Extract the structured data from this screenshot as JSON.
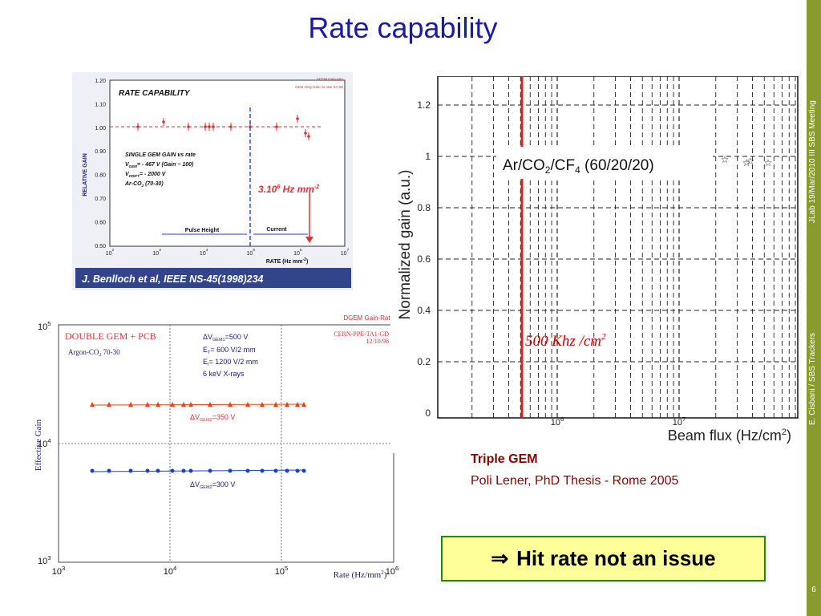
{
  "slide": {
    "title": "Rate capability",
    "side_top": "JLab 19/Mar/2010 III SBS Meeting",
    "side_bottom": "E. Cisbani / SBS Trackers",
    "page_number": "6",
    "conclusion_arrow": "⇒",
    "conclusion_text": "Hit rate not an issue",
    "caption_title": "Triple GEM",
    "caption_ref": "Poli Lener, PhD Thesis - Rome 2005"
  },
  "panel_a": {
    "title": "RATE CAPABILITY",
    "legend1": "SGEM Gain-rate",
    "legend2": "GEM Only Gain vs rate XA-90",
    "note_lines": [
      "SINGLE GEM GAIN vs rate",
      "V",
      "= - 467 V  (Gain ~ 100)",
      "V",
      "= - 2000 V",
      "Ar-CO",
      " (70-30)"
    ],
    "note_sub_gem": "GEM",
    "note_sub_drift": "DRIFT",
    "note_sub_2": "2",
    "rate_label": "3.10",
    "rate_sup": "6",
    "rate_unit": " Hz mm",
    "rate_unit_sup": "-2",
    "pulse_height": "Pulse Height",
    "current": "Current",
    "ylabel": "RELATIVE GAIN",
    "xlabel": "RATE (Hz mm",
    "xlabel_sup": "-2",
    "xlabel_end": ")",
    "citation": "J. Benlloch et al, IEEE NS-45(1998)234",
    "yticks": [
      "1.20",
      "1.10",
      "1.00",
      "0.90",
      "0.80",
      "0.70",
      "0.60",
      "0.50"
    ],
    "xtick_base": "10",
    "xtick_exps": [
      "2",
      "3",
      "4",
      "5",
      "6",
      "7"
    ]
  },
  "panel_b": {
    "header": "DGEM Gain-Rate",
    "title": "DOUBLE GEM + PCB",
    "gas": "Argon-CO",
    "gas_sub": "2",
    "gas_end": " 70-30",
    "lab": "CERN-PPE-TA1-GD",
    "date": "12/10/98",
    "cond1": "ΔV",
    "cond1_sub": "GEM1",
    "cond1_end": "=500 V",
    "cond2": "E",
    "cond2_sub": "T",
    "cond2_end": "= 600 V/2 mm",
    "cond3": "E",
    "cond3_sub": "I",
    "cond3_end": "= 1200 V/2 mm",
    "cond4": "6 keV X-rays",
    "upper_label": "ΔV",
    "upper_sub": "GEM2",
    "upper_end": "=350 V",
    "lower_label": "ΔV",
    "lower_sub": "GEM2",
    "lower_end": "=300 V",
    "ylabel": "Effective Gain",
    "xlabel": "Rate (Hz/mm",
    "xlabel_sup": "2",
    "xlabel_end": ")",
    "tick_base": "10",
    "ytick_exps": [
      "5",
      "4",
      "3"
    ],
    "xtick_exps": [
      "3",
      "4",
      "5",
      "6"
    ]
  },
  "panel_c": {
    "ylabel": "Normalized gain (a.u.)",
    "xlabel": "Beam flux (Hz/cm",
    "xlabel_sup": "2",
    "xlabel_end": ")",
    "yticks": [
      "1.2",
      "1",
      "0.8",
      "0.6",
      "0.4",
      "0.2",
      "0"
    ],
    "xtick_base": "10",
    "xtick_exps": [
      "6",
      "7"
    ],
    "gas_label": "Ar/CO",
    "gas_sub1": "2",
    "gas_mid": "/CF",
    "gas_sub2": "4",
    "gas_end": " (60/20/20)",
    "rate_annotation": "500 Khz /cm",
    "rate_annotation_sup": "2"
  },
  "colors": {
    "title": "#1a1aa6",
    "sidebar": "#8a9a2e",
    "caption": "#8b0000",
    "conclusion_bg": "#ffff99",
    "conclusion_border": "#1e8a1e",
    "red_series": "#e8401a",
    "blue_series": "#1a3fd0"
  }
}
